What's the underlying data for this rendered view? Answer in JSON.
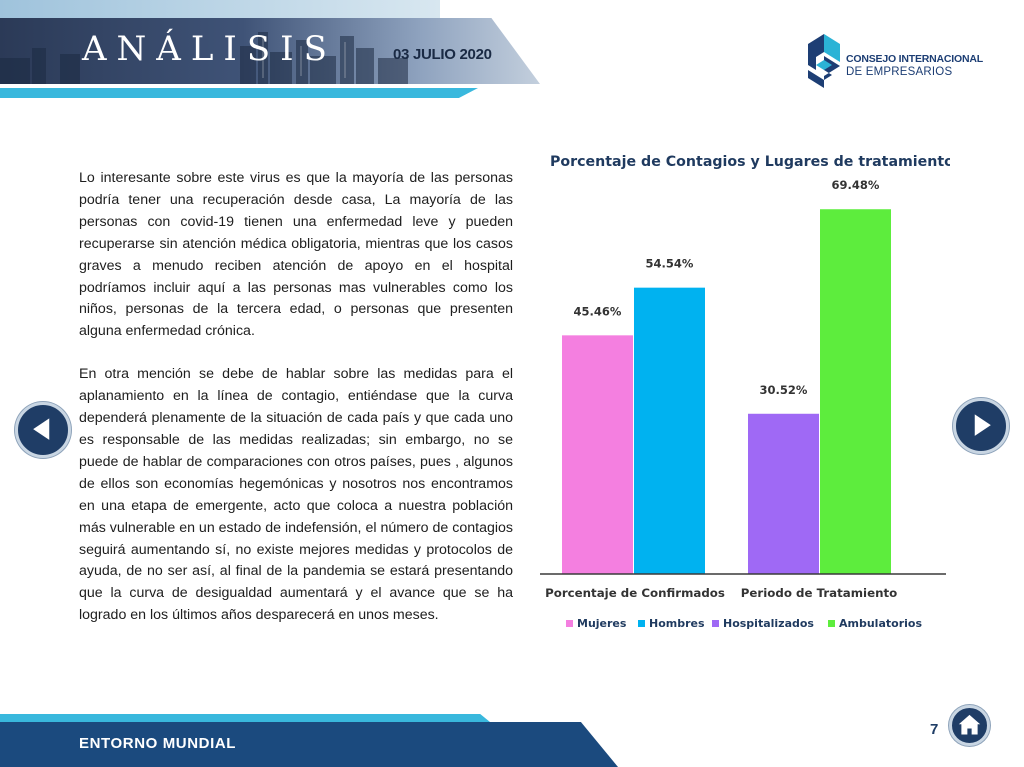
{
  "header": {
    "title": "ANÁLISIS",
    "date": "03 JULIO 2020"
  },
  "logo": {
    "line1": "CONSEJO INTERNACIONAL",
    "line2": "DE EMPRESARIOS"
  },
  "body": {
    "paragraphs": [
      "Lo interesante sobre este virus es que la mayoría de las personas podría tener una recuperación desde casa, La mayoría de las personas con covid-19 tienen una enfermedad leve y pueden recuperarse sin atención médica obligatoria, mientras que los casos graves a menudo reciben atención de apoyo en el hospital podríamos incluir aquí a las personas mas vulnerables como los niños, personas de la tercera edad, o personas que presenten alguna enfermedad crónica.",
      "En otra mención se debe de hablar sobre las medidas para el aplanamiento en la línea de contagio, entiéndase que la curva dependerá plenamente de la situación de cada país y que cada uno es responsable de las medidas realizadas; sin embargo, no se puede de hablar de comparaciones con otros países, pues , algunos de ellos son economías hegemónicas y nosotros nos encontramos en una etapa de emergente, acto que coloca a nuestra población más vulnerable en un estado de indefensión, el número de contagios seguirá aumentando sí, no existe mejores medidas y protocolos de ayuda, de no ser así, al final de la pandemia se estará presentando que la curva de desigualdad aumentará y el avance que se ha logrado en los últimos años desparecerá en unos meses."
    ]
  },
  "chart_data": {
    "type": "bar",
    "title": "Porcentaje de Contagios y Lugares de tratamiento",
    "categories": [
      "Porcentaje de Confirmados",
      "Periodo de Tratamiento"
    ],
    "bars": [
      {
        "series": "Mujeres",
        "category": "Porcentaje de Confirmados",
        "value": 45.46,
        "label": "45.46%",
        "color": "#f47fe0"
      },
      {
        "series": "Hombres",
        "category": "Porcentaje de Confirmados",
        "value": 54.54,
        "label": "54.54%",
        "color": "#00b2f0"
      },
      {
        "series": "Hospitalizados",
        "category": "Periodo de Tratamiento",
        "value": 30.52,
        "label": "30.52%",
        "color": "#9f69f5"
      },
      {
        "series": "Ambulatorios",
        "category": "Periodo de Tratamiento",
        "value": 69.48,
        "label": "69.48%",
        "color": "#5ded3d"
      }
    ],
    "legend": [
      {
        "name": "Mujeres",
        "color": "#f47fe0"
      },
      {
        "name": "Hombres",
        "color": "#00b2f0"
      },
      {
        "name": "Hospitalizados",
        "color": "#9f69f5"
      },
      {
        "name": "Ambulatorios",
        "color": "#5ded3d"
      }
    ],
    "ylim": [
      0,
      80
    ],
    "grid": false,
    "legend_position": "bottom"
  },
  "footer": {
    "section": "ENTORNO MUNDIAL",
    "page_number": "7"
  },
  "icons": {
    "prev": "arrow-left-icon",
    "next": "arrow-right-icon",
    "home": "home-icon"
  }
}
